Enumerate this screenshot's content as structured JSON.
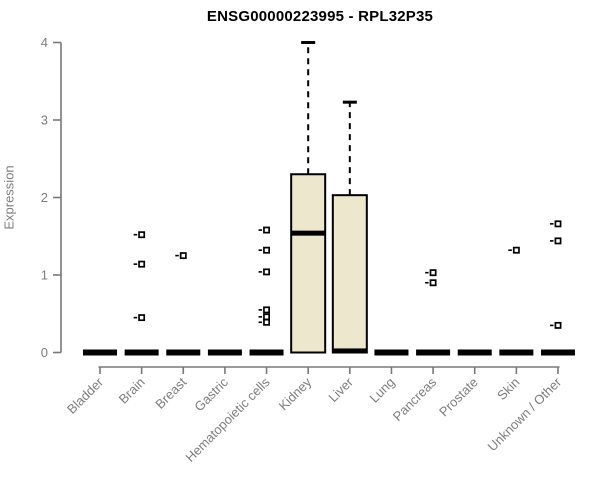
{
  "title": "ENSG00000223995 - RPL32P35",
  "chart_data": {
    "type": "boxplot",
    "title": "ENSG00000223995 - RPL32P35",
    "xlabel": "",
    "ylabel": "Expression",
    "ylim": [
      0,
      4
    ],
    "yticks": [
      0,
      1,
      2,
      3,
      4
    ],
    "grid": false,
    "legend": "none",
    "categories": [
      "Bladder",
      "Brain",
      "Breast",
      "Gastric",
      "Hematopoietic cells",
      "Kidney",
      "Liver",
      "Lung",
      "Pancreas",
      "Prostate",
      "Skin",
      "Unknown / Other"
    ],
    "boxes": [
      {
        "category": "Bladder",
        "q1": 0,
        "median": 0,
        "q3": 0,
        "whisker_low": 0,
        "whisker_high": 0,
        "outliers": []
      },
      {
        "category": "Brain",
        "q1": 0,
        "median": 0,
        "q3": 0,
        "whisker_low": 0,
        "whisker_high": 0,
        "outliers": [
          1.52,
          1.14,
          0.45
        ]
      },
      {
        "category": "Breast",
        "q1": 0,
        "median": 0,
        "q3": 0,
        "whisker_low": 0,
        "whisker_high": 0,
        "outliers": [
          1.25
        ]
      },
      {
        "category": "Gastric",
        "q1": 0,
        "median": 0,
        "q3": 0,
        "whisker_low": 0,
        "whisker_high": 0,
        "outliers": []
      },
      {
        "category": "Hematopoietic cells",
        "q1": 0,
        "median": 0,
        "q3": 0,
        "whisker_low": 0,
        "whisker_high": 0,
        "outliers": [
          1.58,
          1.32,
          1.04,
          0.55,
          0.46,
          0.39
        ]
      },
      {
        "category": "Kidney",
        "q1": 0,
        "median": 1.54,
        "q3": 2.3,
        "whisker_low": 0,
        "whisker_high": 4.0,
        "outliers": []
      },
      {
        "category": "Liver",
        "q1": 0,
        "median": 0.02,
        "q3": 2.03,
        "whisker_low": 0,
        "whisker_high": 3.23,
        "outliers": []
      },
      {
        "category": "Lung",
        "q1": 0,
        "median": 0,
        "q3": 0,
        "whisker_low": 0,
        "whisker_high": 0,
        "outliers": []
      },
      {
        "category": "Pancreas",
        "q1": 0,
        "median": 0,
        "q3": 0,
        "whisker_low": 0,
        "whisker_high": 0,
        "outliers": [
          1.03,
          0.9
        ]
      },
      {
        "category": "Prostate",
        "q1": 0,
        "median": 0,
        "q3": 0,
        "whisker_low": 0,
        "whisker_high": 0,
        "outliers": []
      },
      {
        "category": "Skin",
        "q1": 0,
        "median": 0,
        "q3": 0,
        "whisker_low": 0,
        "whisker_high": 0,
        "outliers": [
          1.32
        ]
      },
      {
        "category": "Unknown / Other",
        "q1": 0,
        "median": 0,
        "q3": 0,
        "whisker_low": 0,
        "whisker_high": 0,
        "outliers": [
          1.66,
          1.44,
          0.35
        ]
      }
    ],
    "colors": {
      "box_fill": "#ece7cd",
      "box_border": "#000000",
      "median": "#000000",
      "whisker": "#000000",
      "outlier": "#000000",
      "axis": "#787878",
      "tick_label": "#7d7d7d",
      "title": "#000000",
      "background": "#ffffff"
    }
  }
}
